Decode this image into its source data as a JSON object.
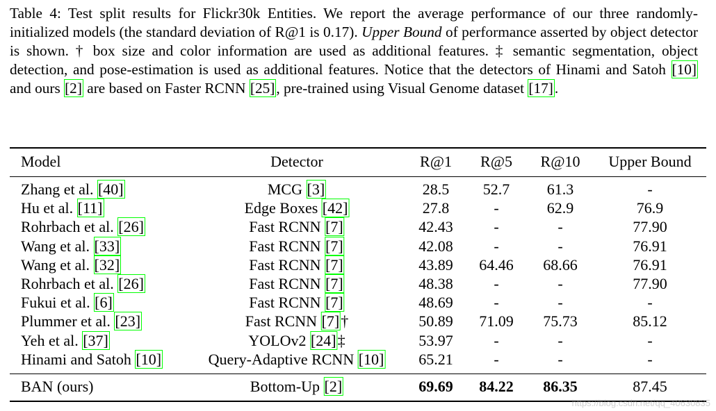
{
  "caption": [
    {
      "text": "Table 4: Test split results for Flickr30k Entities. We report the average performance of our three randomly-initialized models (the standard deviation of R@1 is 0.17). "
    },
    {
      "em": "Upper Bound"
    },
    {
      "text": " of performance asserted by object detector is shown. † box size and color information are used as additional features. ‡ semantic segmentation, object detection, and pose-estimation is used as additional features. Notice that the detectors of Hinami and Satoh "
    },
    {
      "ref": "10"
    },
    {
      "text": " and ours "
    },
    {
      "ref": "2"
    },
    {
      "text": " are based on Faster RCNN "
    },
    {
      "ref": "25"
    },
    {
      "text": ", pre-trained using Visual Genome dataset "
    },
    {
      "ref": "17"
    },
    {
      "text": "."
    }
  ],
  "table": {
    "header": [
      "Model",
      "Detector",
      "R@1",
      "R@5",
      "R@10",
      "Upper Bound"
    ],
    "rows": [
      {
        "model": "Zhang et al.",
        "model_ref": "40",
        "detector": "MCG",
        "detector_ref": "3",
        "r1": "28.5",
        "r5": "52.7",
        "r10": "61.3",
        "upper": "-"
      },
      {
        "model": "Hu et al.",
        "model_ref": "11",
        "detector": "Edge Boxes",
        "detector_ref": "42",
        "r1": "27.8",
        "r5": "-",
        "r10": "62.9",
        "upper": "76.9"
      },
      {
        "model": "Rohrbach et al.",
        "model_ref": "26",
        "detector": "Fast RCNN",
        "detector_ref": "7",
        "r1": "42.43",
        "r5": "-",
        "r10": "-",
        "upper": "77.90"
      },
      {
        "model": "Wang et al.",
        "model_ref": "33",
        "detector": "Fast RCNN",
        "detector_ref": "7",
        "r1": "42.08",
        "r5": "-",
        "r10": "-",
        "upper": "76.91"
      },
      {
        "model": "Wang et al.",
        "model_ref": "32",
        "detector": "Fast RCNN",
        "detector_ref": "7",
        "r1": "43.89",
        "r5": "64.46",
        "r10": "68.66",
        "upper": "76.91"
      },
      {
        "model": "Rohrbach et al.",
        "model_ref": "26",
        "detector": "Fast RCNN",
        "detector_ref": "7",
        "r1": "48.38",
        "r5": "-",
        "r10": "-",
        "upper": "77.90"
      },
      {
        "model": "Fukui et al.",
        "model_ref": "6",
        "detector": "Fast RCNN",
        "detector_ref": "7",
        "r1": "48.69",
        "r5": "-",
        "r10": "-",
        "upper": "-"
      },
      {
        "model": "Plummer et al.",
        "model_ref": "23",
        "detector": "Fast RCNN",
        "detector_ref": "7",
        "detector_note": "†",
        "r1": "50.89",
        "r5": "71.09",
        "r10": "75.73",
        "upper": "85.12"
      },
      {
        "model": "Yeh et al.",
        "model_ref": "37",
        "detector": "YOLOv2",
        "detector_ref": "24",
        "detector_note": "‡",
        "r1": "53.97",
        "r5": "-",
        "r10": "-",
        "upper": "-"
      },
      {
        "model": "Hinami and Satoh",
        "model_ref": "10",
        "detector": "Query-Adaptive RCNN",
        "detector_ref": "10",
        "r1": "65.21",
        "r5": "-",
        "r10": "-",
        "upper": "-"
      }
    ],
    "footer_row": {
      "model": "BAN (ours)",
      "detector": "Bottom-Up",
      "detector_ref": "2",
      "r1": "69.69",
      "r5": "84.22",
      "r10": "86.35",
      "upper": "87.45"
    }
  },
  "watermark": "https://blog.csdn.net/qq_40630835"
}
